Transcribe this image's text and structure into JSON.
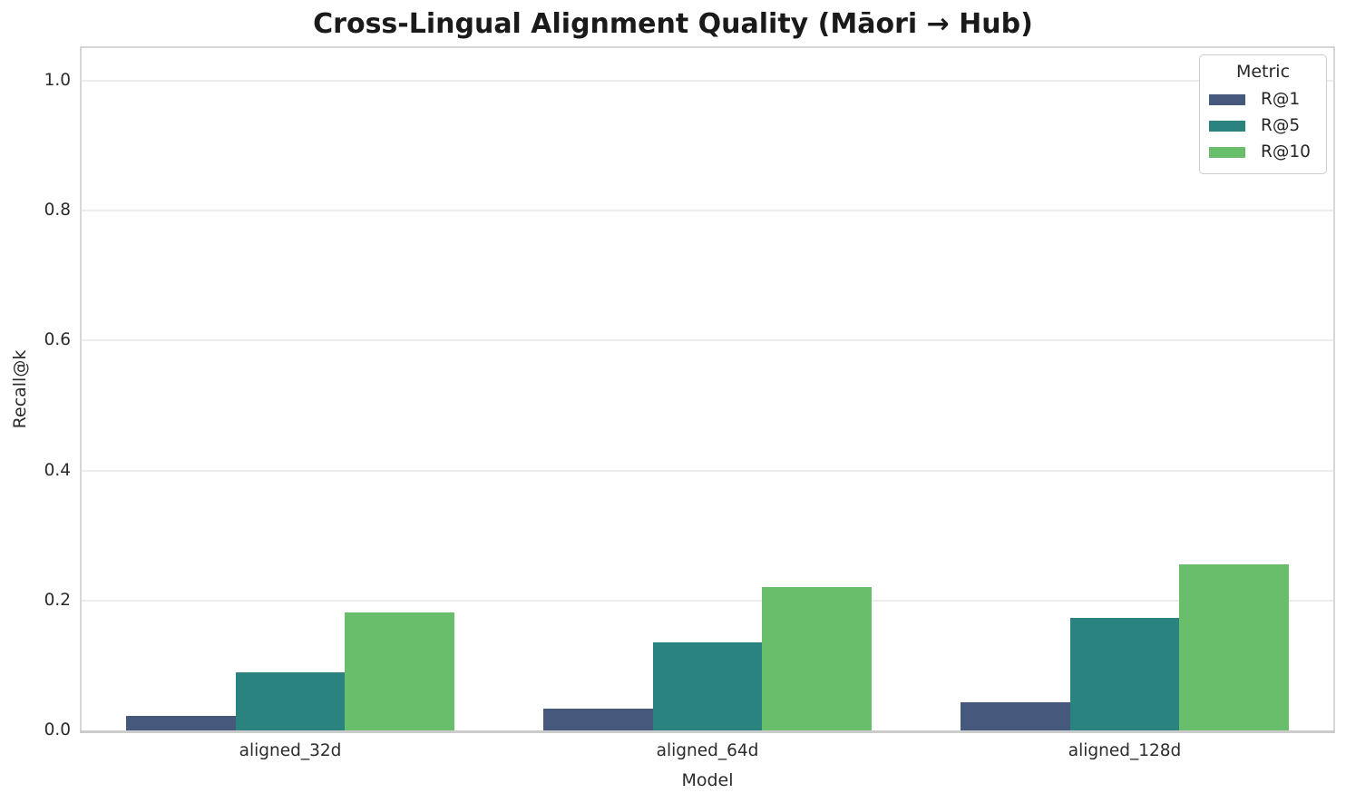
{
  "title": "Cross-Lingual Alignment Quality (Māori → Hub)",
  "chart_data": {
    "type": "bar",
    "title": "Cross-Lingual Alignment Quality (Māori → Hub)",
    "categories": [
      "aligned_32d",
      "aligned_64d",
      "aligned_128d"
    ],
    "series": [
      {
        "name": "R@1",
        "color": "#46587c",
        "values": [
          0.022,
          0.034,
          0.044
        ]
      },
      {
        "name": "R@5",
        "color": "#2a837f",
        "values": [
          0.089,
          0.136,
          0.173
        ]
      },
      {
        "name": "R@10",
        "color": "#68be6a",
        "values": [
          0.181,
          0.221,
          0.255
        ]
      }
    ],
    "xlabel": "Model",
    "ylabel": "Recall@k",
    "ylim": [
      0,
      1.05
    ],
    "yticks": [
      0.0,
      0.2,
      0.4,
      0.6,
      0.8,
      1.0
    ],
    "ytick_labels": [
      "0.0",
      "0.2",
      "0.4",
      "0.6",
      "0.8",
      "1.0"
    ],
    "legend_title": "Metric",
    "legend_position": "upper right",
    "grid": "horizontal"
  }
}
